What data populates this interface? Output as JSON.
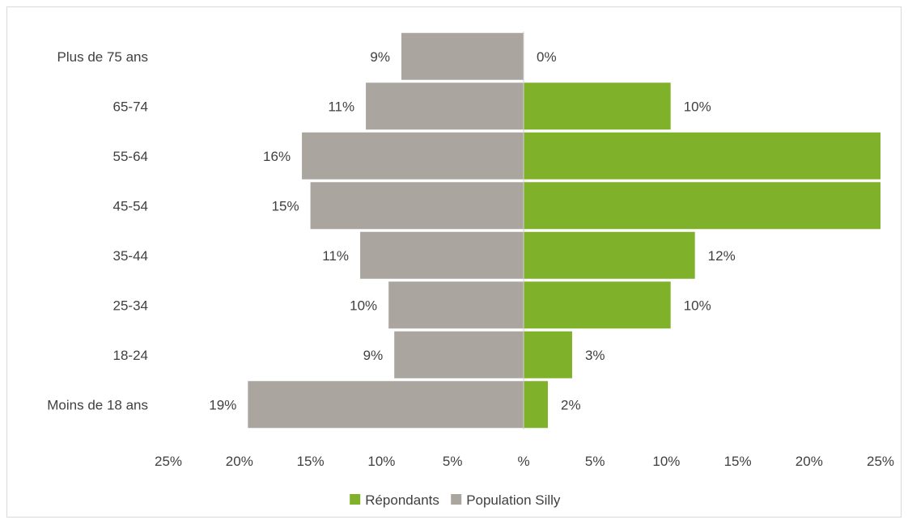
{
  "chart_data": {
    "type": "bar",
    "orientation": "horizontal",
    "layout": "population-pyramid",
    "categories": [
      "Plus de 75 ans",
      "65-74",
      "55-64",
      "45-54",
      "35-44",
      "25-34",
      "18-24",
      "Moins de 18 ans"
    ],
    "series": [
      {
        "name": "Population Silly",
        "side": "left",
        "color": "#aba59f",
        "values": [
          8.6,
          11.1,
          15.6,
          15.0,
          11.5,
          9.5,
          9.1,
          19.4
        ],
        "labels": [
          "9%",
          "11%",
          "16%",
          "15%",
          "11%",
          "10%",
          "9%",
          "19%"
        ]
      },
      {
        "name": "Répondants",
        "side": "right",
        "color": "#7fb22a",
        "values": [
          0,
          10.3,
          25,
          25,
          12.0,
          10.3,
          3.4,
          1.7
        ],
        "labels": [
          "0%",
          "10%",
          "",
          "",
          "12%",
          "10%",
          "3%",
          "2%"
        ]
      }
    ],
    "xlim": [
      -25,
      25
    ],
    "xticks": [
      -25,
      -20,
      -15,
      -10,
      -5,
      0,
      5,
      10,
      15,
      20,
      25
    ],
    "xtick_labels": [
      "25%",
      "20%",
      "15%",
      "10%",
      "5%",
      "%",
      "5%",
      "10%",
      "15%",
      "20%",
      "25%"
    ],
    "title": "",
    "xlabel": "",
    "ylabel": "",
    "grid": false,
    "legend": {
      "position": "bottom",
      "items": [
        {
          "name": "Répondants",
          "color": "#7fb22a"
        },
        {
          "name": "Population Silly",
          "color": "#aba59f"
        }
      ]
    }
  }
}
